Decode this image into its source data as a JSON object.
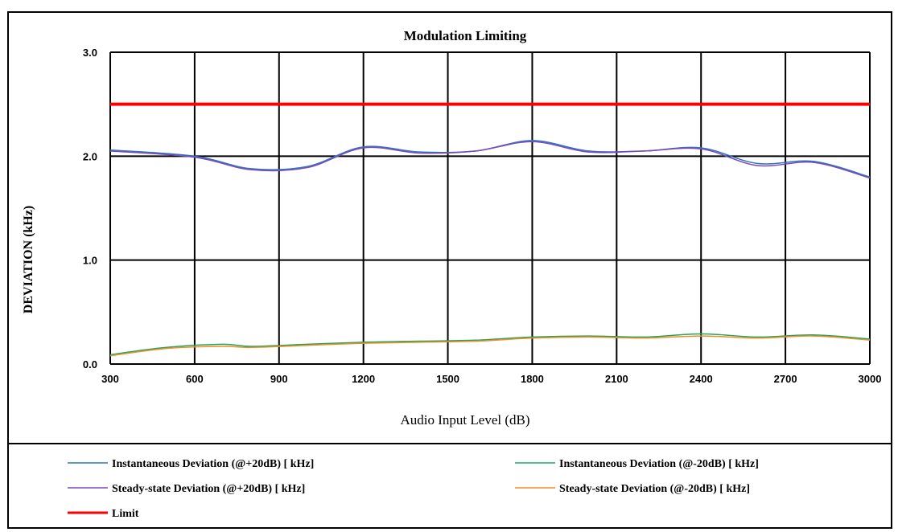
{
  "chart_data": {
    "type": "line",
    "title": "Modulation Limiting",
    "xlabel": "Audio Input Level (dB)",
    "ylabel": "DEVIATION (kHz)",
    "x_ticks": [
      "300",
      "600",
      "900",
      "1200",
      "1500",
      "1800",
      "2100",
      "2400",
      "2700",
      "3000"
    ],
    "xlim": [
      300,
      3000
    ],
    "y_ticks": [
      "0.0",
      "1.0",
      "2.0",
      "3.0"
    ],
    "ylim": [
      0,
      3
    ],
    "grid": true,
    "legend_position": "bottom",
    "series": [
      {
        "name": "Instantaneous Deviation (@+20dB) [ kHz]",
        "color": "#2f74c0",
        "width": 1.5,
        "x": [
          300,
          600,
          800,
          1000,
          1200,
          1400,
          1600,
          1800,
          2000,
          2200,
          2400,
          2600,
          2800,
          3000
        ],
        "y": [
          2.06,
          2.0,
          1.88,
          1.9,
          2.09,
          2.04,
          2.05,
          2.15,
          2.05,
          2.05,
          2.08,
          1.93,
          1.95,
          1.8
        ]
      },
      {
        "name": "Instantaneous Deviation (@-20dB) [ kHz]",
        "color": "#22a55a",
        "width": 1.5,
        "x": [
          300,
          500,
          700,
          800,
          1000,
          1200,
          1400,
          1600,
          1800,
          2000,
          2200,
          2400,
          2600,
          2800,
          3000
        ],
        "y": [
          0.09,
          0.16,
          0.19,
          0.17,
          0.19,
          0.21,
          0.22,
          0.23,
          0.26,
          0.27,
          0.26,
          0.29,
          0.26,
          0.28,
          0.24
        ]
      },
      {
        "name": "Steady-state Deviation (@+20dB) [ kHz]",
        "color": "#7a49b8",
        "width": 1.5,
        "x": [
          300,
          600,
          800,
          1000,
          1200,
          1400,
          1600,
          1800,
          2000,
          2200,
          2400,
          2600,
          2800,
          3000
        ],
        "y": [
          2.05,
          1.99,
          1.87,
          1.89,
          2.08,
          2.03,
          2.05,
          2.14,
          2.04,
          2.05,
          2.07,
          1.91,
          1.94,
          1.79
        ]
      },
      {
        "name": "Steady-state Deviation (@-20dB) [ kHz]",
        "color": "#f28c28",
        "width": 1.5,
        "x": [
          300,
          500,
          700,
          800,
          1000,
          1200,
          1400,
          1600,
          1800,
          2000,
          2200,
          2400,
          2600,
          2800,
          3000
        ],
        "y": [
          0.08,
          0.15,
          0.17,
          0.16,
          0.18,
          0.2,
          0.21,
          0.22,
          0.25,
          0.26,
          0.25,
          0.27,
          0.25,
          0.27,
          0.23
        ]
      },
      {
        "name": "Limit",
        "color": "#ff0000",
        "width": 4,
        "x": [
          300,
          3000
        ],
        "y": [
          2.5,
          2.5
        ]
      }
    ]
  }
}
